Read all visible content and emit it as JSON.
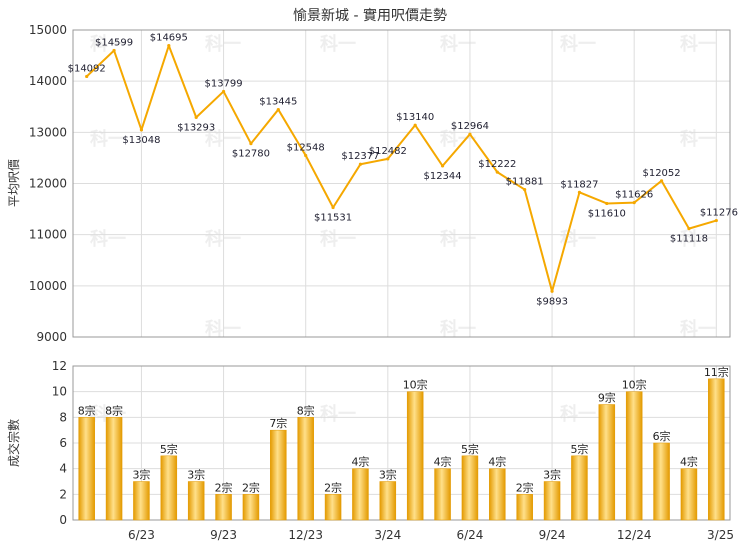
{
  "title": "愉景新城 - 實用呎價走勢",
  "colors": {
    "line": "#F5A800",
    "bar_light": "#FFE08A",
    "bar_mid": "#F5B400",
    "bar_dark": "#E39A00"
  },
  "chart_data": [
    {
      "type": "line",
      "ylabel": "平均呎價",
      "ylim": [
        9000,
        15000
      ],
      "yticks": [
        9000,
        10000,
        11000,
        12000,
        13000,
        14000,
        15000
      ],
      "grid": true,
      "series": [
        {
          "values": [
            14092,
            14599,
            13048,
            14695,
            13293,
            13799,
            12780,
            13445,
            12548,
            11531,
            12377,
            12482,
            13140,
            12344,
            12964,
            12222,
            11881,
            9893,
            11827,
            11610,
            11626,
            12052,
            11118,
            11276
          ],
          "labels": [
            "$14092",
            "$14599",
            "$13048",
            "$14695",
            "$13293",
            "$13799",
            "$12780",
            "$13445",
            "$12548",
            "$11531",
            "$12377",
            "$12482",
            "$13140",
            "$12344",
            "$12964",
            "$12222",
            "$11881",
            "$9893",
            "$11827",
            "$11610",
            "$11626",
            "$12052",
            "$11118",
            "$11276"
          ]
        }
      ]
    },
    {
      "type": "bar",
      "ylabel": "成交宗數",
      "ylim": [
        0,
        12
      ],
      "yticks": [
        0,
        2,
        4,
        6,
        8,
        10,
        12
      ],
      "grid": true,
      "xticks": [
        {
          "index": 2,
          "label": "6/23"
        },
        {
          "index": 5,
          "label": "9/23"
        },
        {
          "index": 8,
          "label": "12/23"
        },
        {
          "index": 11,
          "label": "3/24"
        },
        {
          "index": 14,
          "label": "6/24"
        },
        {
          "index": 17,
          "label": "9/24"
        },
        {
          "index": 20,
          "label": "12/24"
        },
        {
          "index": 23,
          "label": "3/25"
        }
      ],
      "series": [
        {
          "values": [
            8,
            8,
            3,
            5,
            3,
            2,
            2,
            7,
            8,
            2,
            4,
            3,
            10,
            4,
            5,
            4,
            2,
            3,
            5,
            9,
            10,
            6,
            4,
            11
          ],
          "labels": [
            "8宗",
            "8宗",
            "3宗",
            "5宗",
            "3宗",
            "2宗",
            "2宗",
            "7宗",
            "8宗",
            "2宗",
            "4宗",
            "3宗",
            "10宗",
            "4宗",
            "5宗",
            "4宗",
            "2宗",
            "3宗",
            "5宗",
            "9宗",
            "10宗",
            "6宗",
            "4宗",
            "11宗"
          ]
        }
      ]
    }
  ]
}
